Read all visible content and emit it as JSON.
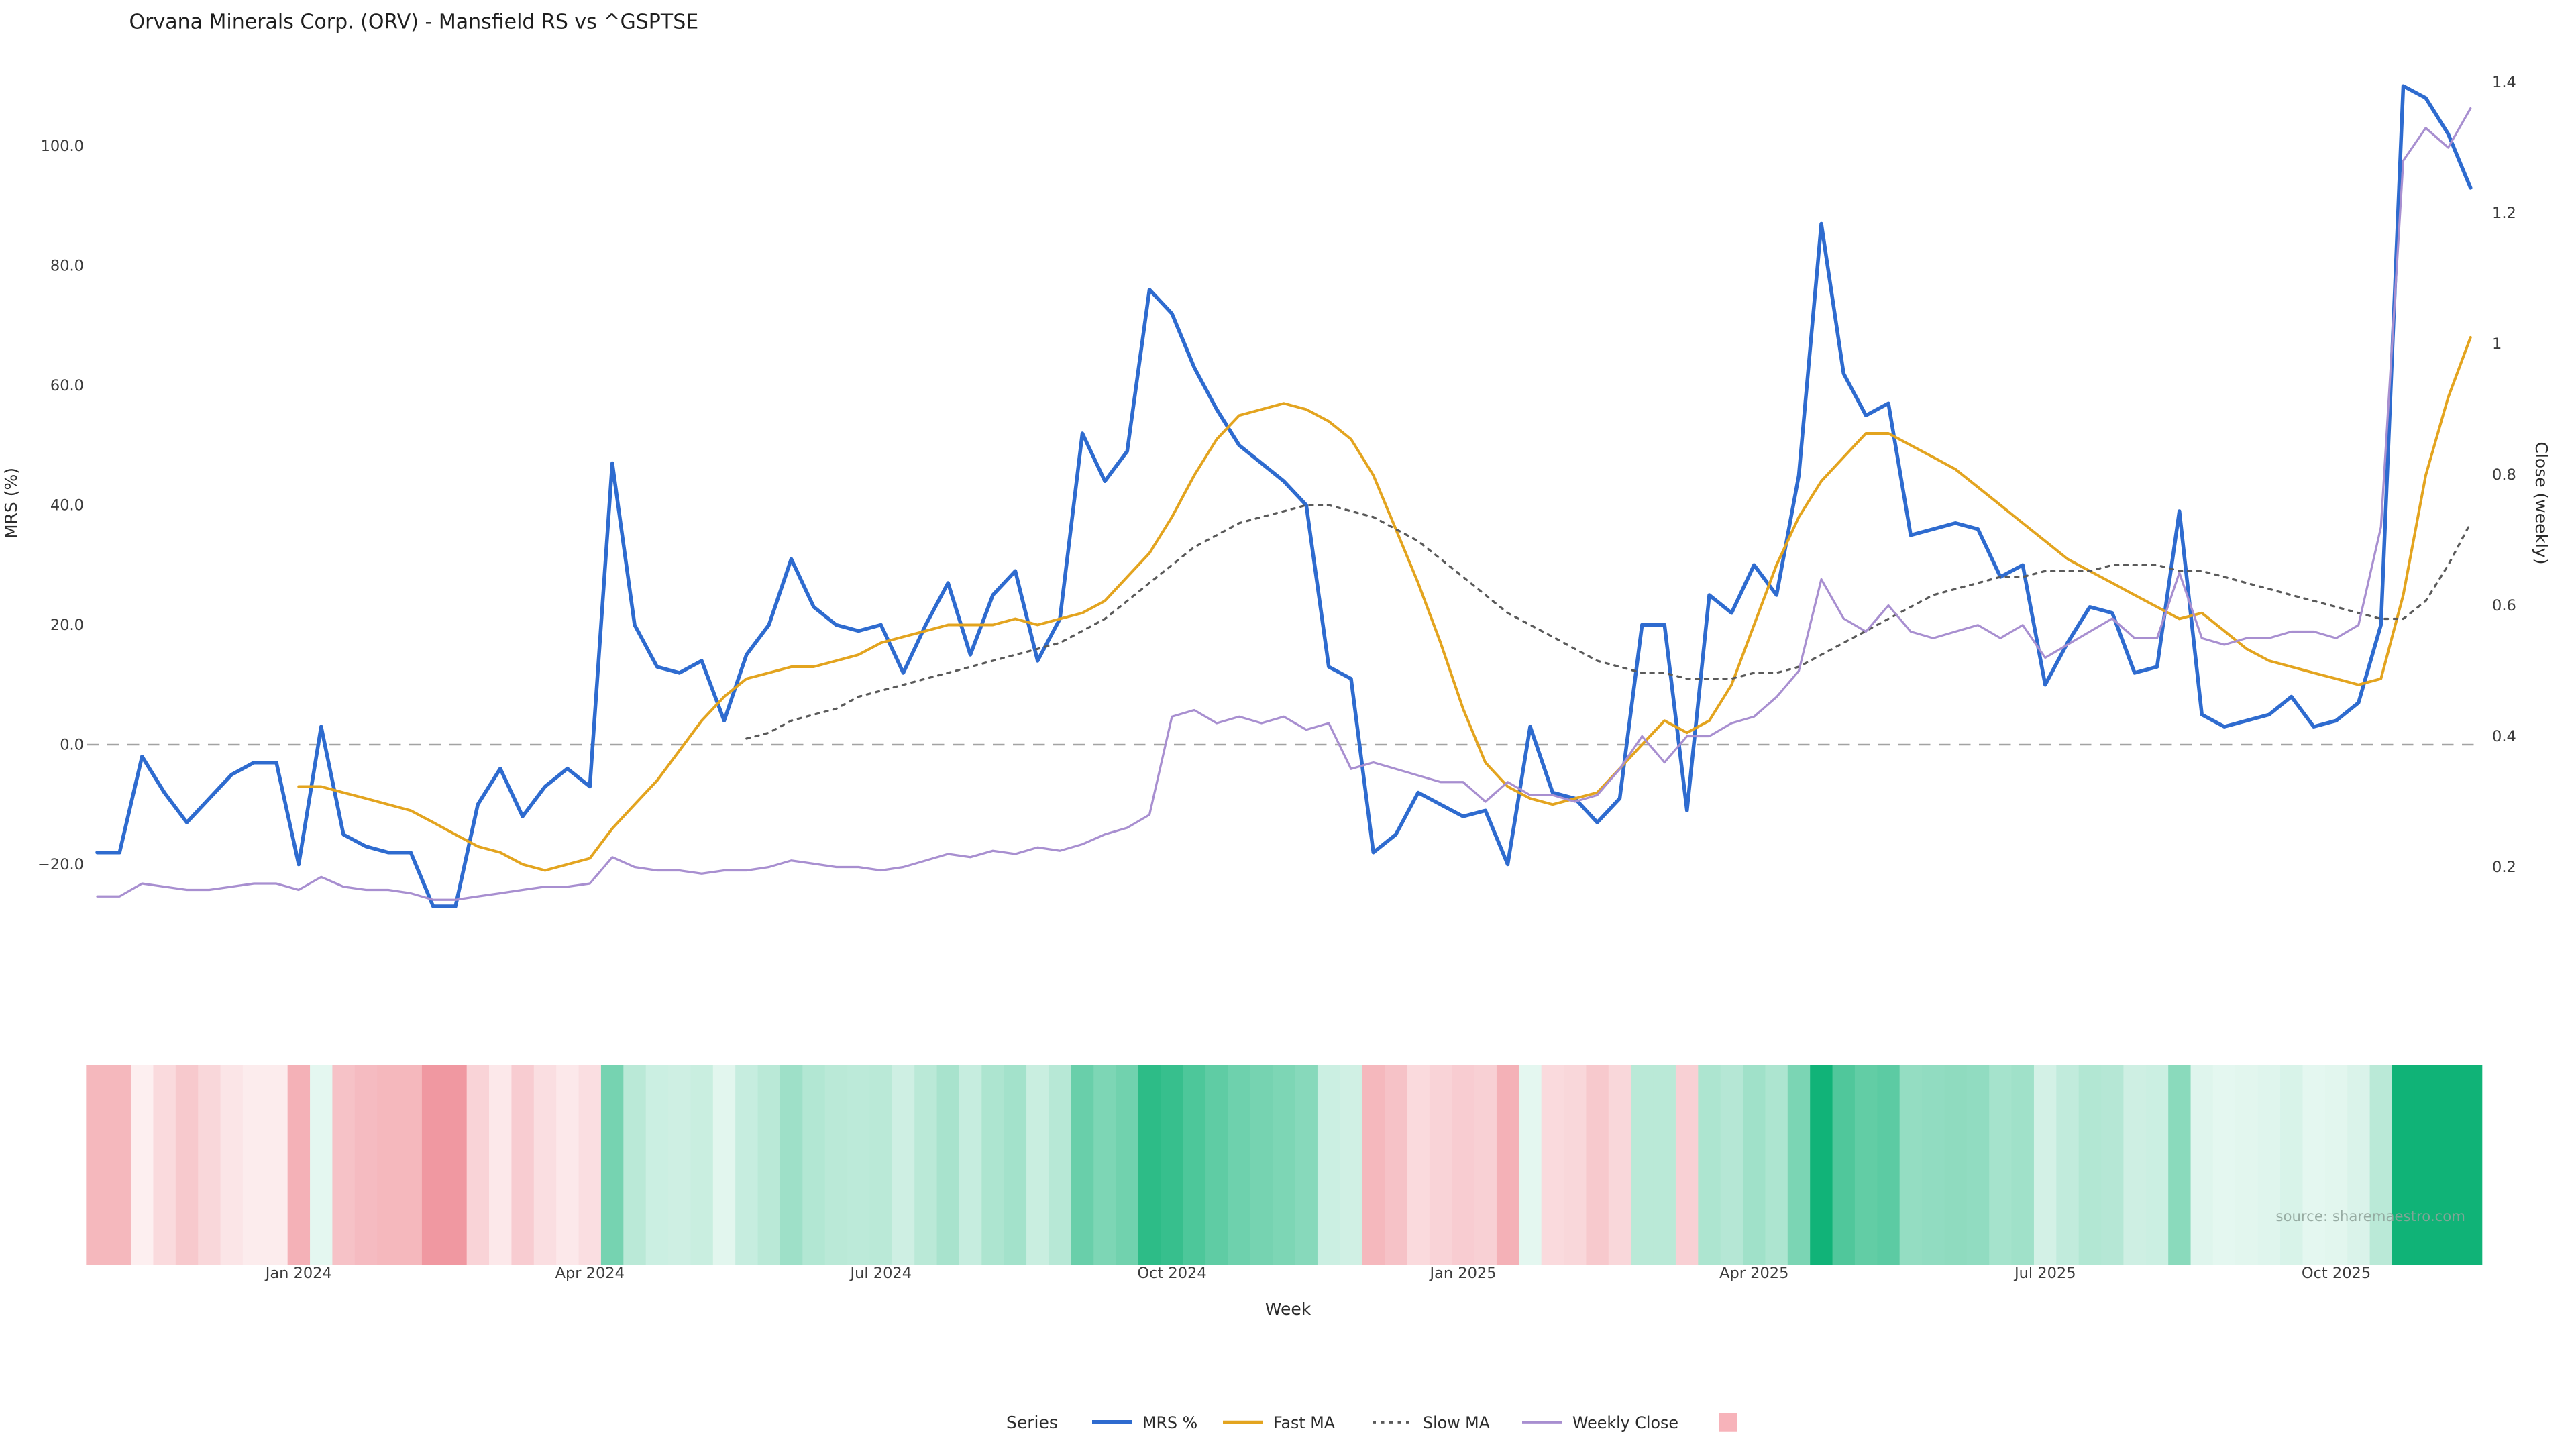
{
  "source_note": "source: sharemaestro.com",
  "chart_data": {
    "type": "line",
    "title": "Orvana Minerals Corp. (ORV) - Mansfield RS vs ^GSPTSE",
    "xlabel": "Week",
    "ylabel_left": "MRS (%)",
    "ylabel_right": "Close (weekly)",
    "weeks_count": 107,
    "grid": false,
    "zero_line": true,
    "x_axis": {
      "tick_indices": [
        9,
        22,
        35,
        48,
        61,
        74,
        87,
        100
      ],
      "tick_labels": [
        "Jan 2024",
        "Apr 2024",
        "Jul 2024",
        "Oct 2024",
        "Jan 2025",
        "Apr 2025",
        "Jul 2025",
        "Oct 2025"
      ]
    },
    "left_axis": {
      "range": [
        -32,
        115
      ],
      "tick_values": [
        -20,
        0,
        20,
        40,
        60,
        80,
        100
      ],
      "tick_labels": [
        "−20.0",
        "0.0",
        "20.0",
        "40.0",
        "60.0",
        "80.0",
        "100.0"
      ]
    },
    "right_axis": {
      "range": [
        0.08,
        1.45
      ],
      "tick_values": [
        0.2,
        0.4,
        0.6,
        0.8,
        1.0,
        1.2,
        1.4
      ],
      "tick_labels": [
        "0.2",
        "0.4",
        "0.6",
        "0.8",
        "1",
        "1.2",
        "1.4"
      ]
    },
    "series": [
      {
        "name": "MRS %",
        "axis": "left",
        "color": "#2e6bcf",
        "width": 2.2,
        "dash": null,
        "values": [
          -18,
          -18,
          -2,
          -8,
          -13,
          -9,
          -5,
          -3,
          -3,
          -20,
          3,
          -15,
          -17,
          -18,
          -18,
          -27,
          -27,
          -10,
          -4,
          -12,
          -7,
          -4,
          -7,
          47,
          20,
          13,
          12,
          14,
          4,
          15,
          20,
          31,
          23,
          20,
          19,
          20,
          12,
          20,
          27,
          15,
          25,
          29,
          14,
          21,
          52,
          44,
          49,
          76,
          72,
          63,
          56,
          50,
          47,
          44,
          40,
          13,
          11,
          -18,
          -15,
          -8,
          -10,
          -12,
          -11,
          -20,
          3,
          -8,
          -9,
          -13,
          -9,
          20,
          20,
          -11,
          25,
          22,
          30,
          25,
          45,
          87,
          62,
          55,
          57,
          35,
          36,
          37,
          36,
          28,
          30,
          10,
          17,
          23,
          22,
          12,
          13,
          39,
          5,
          3,
          4,
          5,
          8,
          3,
          4,
          7,
          20,
          110,
          108,
          102,
          93
        ]
      },
      {
        "name": "Fast MA",
        "axis": "left",
        "color": "#e3a41f",
        "width": 1.6,
        "dash": null,
        "values": [
          null,
          null,
          null,
          null,
          null,
          null,
          null,
          null,
          null,
          -7,
          -7,
          -8,
          -9,
          -10,
          -11,
          -13,
          -15,
          -17,
          -18,
          -20,
          -21,
          -20,
          -19,
          -14,
          -10,
          -6,
          -1,
          4,
          8,
          11,
          12,
          13,
          13,
          14,
          15,
          17,
          18,
          19,
          20,
          20,
          20,
          21,
          20,
          21,
          22,
          24,
          28,
          32,
          38,
          45,
          51,
          55,
          56,
          57,
          56,
          54,
          51,
          45,
          36,
          27,
          17,
          6,
          -3,
          -7,
          -9,
          -10,
          -9,
          -8,
          -4,
          0,
          4,
          2,
          4,
          10,
          20,
          30,
          38,
          44,
          48,
          52,
          52,
          50,
          48,
          46,
          43,
          40,
          37,
          34,
          31,
          29,
          27,
          25,
          23,
          21,
          22,
          19,
          16,
          14,
          13,
          12,
          11,
          10,
          11,
          25,
          45,
          58,
          68
        ]
      },
      {
        "name": "Slow MA",
        "axis": "left",
        "color": "#5a5a5a",
        "width": 1.3,
        "dash": "2,3.5",
        "values": [
          null,
          null,
          null,
          null,
          null,
          null,
          null,
          null,
          null,
          null,
          null,
          null,
          null,
          null,
          null,
          null,
          null,
          null,
          null,
          null,
          null,
          null,
          null,
          null,
          null,
          null,
          null,
          null,
          null,
          1,
          2,
          4,
          5,
          6,
          8,
          9,
          10,
          11,
          12,
          13,
          14,
          15,
          16,
          17,
          19,
          21,
          24,
          27,
          30,
          33,
          35,
          37,
          38,
          39,
          40,
          40,
          39,
          38,
          36,
          34,
          31,
          28,
          25,
          22,
          20,
          18,
          16,
          14,
          13,
          12,
          12,
          11,
          11,
          11,
          12,
          12,
          13,
          15,
          17,
          19,
          21,
          23,
          25,
          26,
          27,
          28,
          28,
          29,
          29,
          29,
          30,
          30,
          30,
          29,
          29,
          28,
          27,
          26,
          25,
          24,
          23,
          22,
          21,
          21,
          24,
          30,
          37
        ]
      },
      {
        "name": "Weekly Close",
        "axis": "right",
        "color": "#a88fd0",
        "width": 1.3,
        "dash": null,
        "values": [
          0.155,
          0.155,
          0.175,
          0.17,
          0.165,
          0.165,
          0.17,
          0.175,
          0.175,
          0.165,
          0.185,
          0.17,
          0.165,
          0.165,
          0.16,
          0.15,
          0.15,
          0.155,
          0.16,
          0.165,
          0.17,
          0.17,
          0.175,
          0.215,
          0.2,
          0.195,
          0.195,
          0.19,
          0.195,
          0.195,
          0.2,
          0.21,
          0.205,
          0.2,
          0.2,
          0.195,
          0.2,
          0.21,
          0.22,
          0.215,
          0.225,
          0.22,
          0.23,
          0.225,
          0.235,
          0.25,
          0.26,
          0.28,
          0.43,
          0.44,
          0.42,
          0.43,
          0.42,
          0.43,
          0.41,
          0.42,
          0.35,
          0.36,
          0.35,
          0.34,
          0.33,
          0.33,
          0.3,
          0.33,
          0.31,
          0.31,
          0.3,
          0.31,
          0.35,
          0.4,
          0.36,
          0.4,
          0.4,
          0.42,
          0.43,
          0.46,
          0.5,
          0.64,
          0.58,
          0.56,
          0.6,
          0.56,
          0.55,
          0.56,
          0.57,
          0.55,
          0.57,
          0.52,
          0.54,
          0.56,
          0.58,
          0.55,
          0.55,
          0.65,
          0.55,
          0.54,
          0.55,
          0.55,
          0.56,
          0.56,
          0.55,
          0.57,
          0.72,
          1.28,
          1.33,
          1.3,
          1.36
        ]
      }
    ],
    "heatmap": {
      "name": "MRS heat strip",
      "source_series": "MRS %",
      "positive_color": "#10b377",
      "negative_color": "#ef9099"
    },
    "legend": {
      "title": "Series",
      "position": "bottom",
      "items": [
        {
          "label": "MRS %",
          "color": "#2e6bcf",
          "width": 2.4
        },
        {
          "label": "Fast MA",
          "color": "#e3a41f",
          "width": 1.8
        },
        {
          "label": "Slow MA",
          "color": "#5a5a5a",
          "width": 1.5,
          "dash": "2,3"
        },
        {
          "label": "Weekly Close",
          "color": "#a88fd0",
          "width": 1.5
        },
        {
          "label": "",
          "color": "#f7b3ba",
          "swatch": true
        }
      ]
    }
  }
}
